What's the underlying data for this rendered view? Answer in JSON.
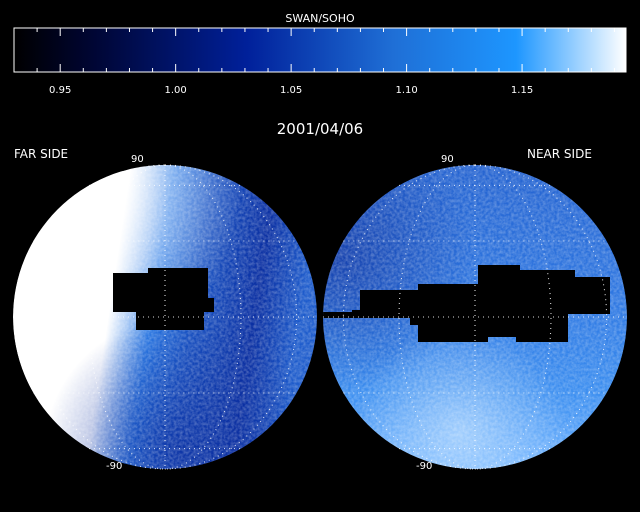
{
  "instrument": "SWAN/SOHO",
  "date": "2001/04/06",
  "left_hemisphere_label": "FAR SIDE",
  "right_hemisphere_label": "NEAR SIDE",
  "latitude_labels": {
    "top": "90",
    "bottom": "-90"
  },
  "colorbar": {
    "min": 0.93,
    "max": 1.195,
    "tick_labels": [
      "0.95",
      "1.00",
      "1.05",
      "1.10",
      "1.15"
    ],
    "tick_values": [
      0.95,
      1.0,
      1.05,
      1.1,
      1.15
    ],
    "colors": {
      "low": "#000000",
      "mid": "#00209a",
      "high": "#1a90ff",
      "top": "#ffffff"
    }
  },
  "colors": {
    "background": "#000000",
    "text": "#ffffff",
    "data_gap": "#000000"
  }
}
